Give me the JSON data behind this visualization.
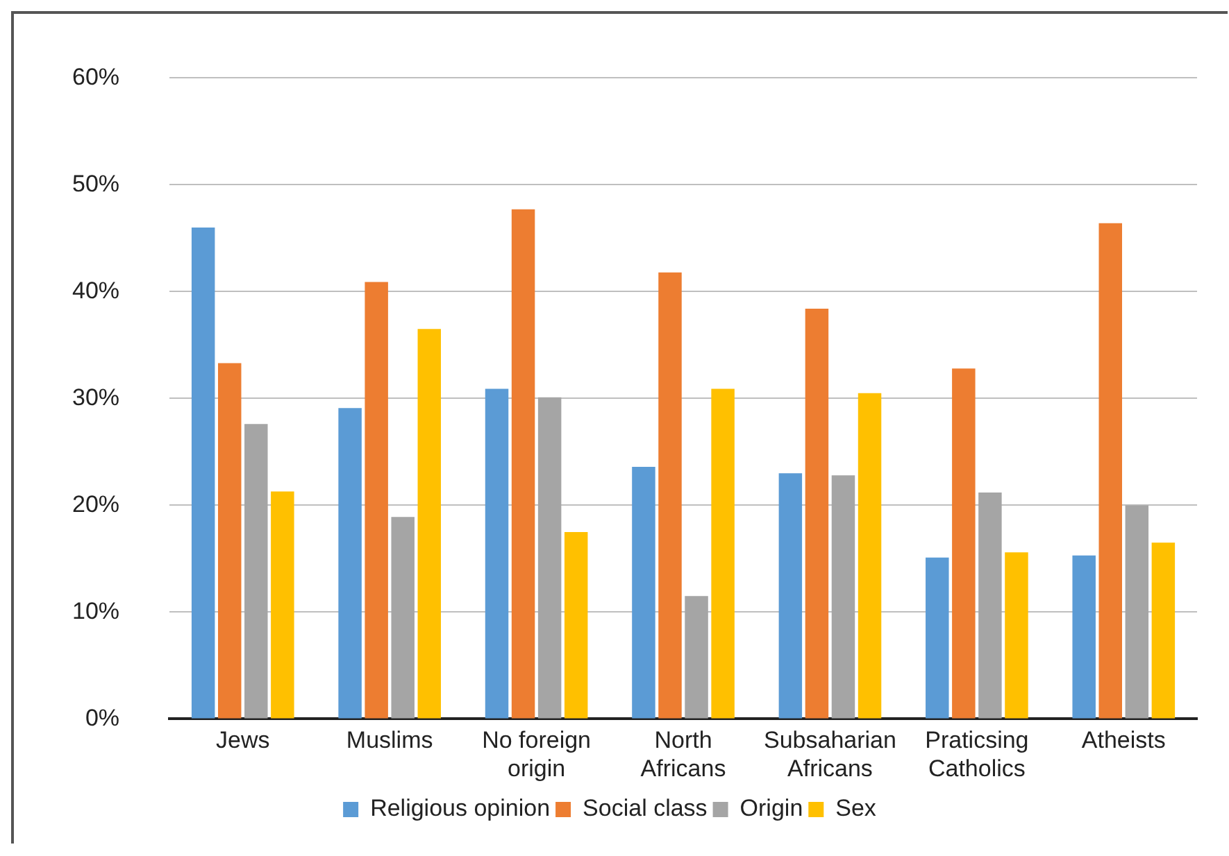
{
  "chart_data": {
    "type": "bar",
    "categories": [
      "Jews",
      "Muslims",
      "No foreign origin",
      "North Africans",
      "Subsaharian Africans",
      "Praticsing Catholics",
      "Atheists"
    ],
    "series": [
      {
        "name": "Religious opinion",
        "color": "#5b9bd5",
        "values": [
          46.0,
          29.1,
          30.9,
          23.6,
          23.0,
          15.1,
          15.3
        ]
      },
      {
        "name": "Social class",
        "color": "#ed7d31",
        "values": [
          33.3,
          40.9,
          47.7,
          41.8,
          38.4,
          32.8,
          46.4
        ]
      },
      {
        "name": "Origin",
        "color": "#a5a5a5",
        "values": [
          27.6,
          18.9,
          30.1,
          11.5,
          22.8,
          21.2,
          20.0
        ]
      },
      {
        "name": "Sex",
        "color": "#ffc000",
        "values": [
          21.3,
          36.5,
          17.5,
          30.9,
          30.5,
          15.6,
          16.5
        ]
      }
    ],
    "ylim": [
      0,
      60
    ],
    "yticks": [
      {
        "value": 0,
        "label": "0%"
      },
      {
        "value": 10,
        "label": "10%"
      },
      {
        "value": 20,
        "label": "20%"
      },
      {
        "value": 30,
        "label": "30%"
      },
      {
        "value": 40,
        "label": "40%"
      },
      {
        "value": 50,
        "label": "50%"
      },
      {
        "value": 60,
        "label": "60%"
      }
    ],
    "grid": "y",
    "legend": "bottom"
  }
}
